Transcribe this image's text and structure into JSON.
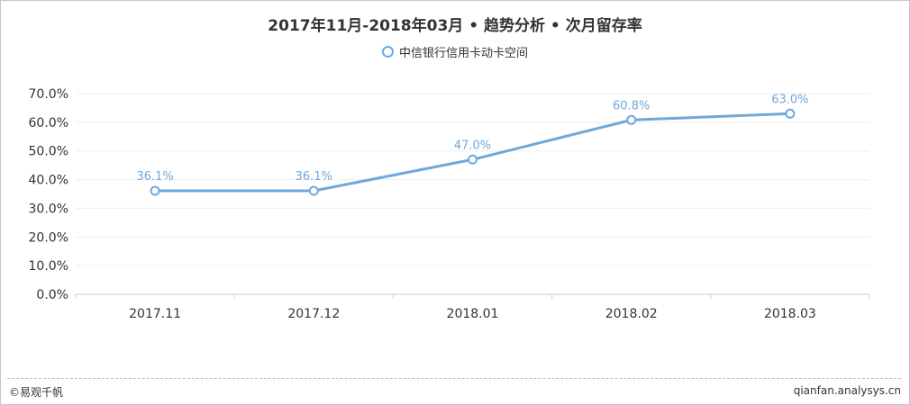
{
  "title": "2017年11月-2018年03月 • 趋势分析 • 次月留存率",
  "legend": {
    "label": "中信银行信用卡动卡空间"
  },
  "footer": {
    "left": "©易观千帆",
    "right": "qianfan.analysys.cn"
  },
  "colors": {
    "series": "#6fa8dc",
    "label": "#6fa8dc",
    "axis": "#333333",
    "grid": "#eeeeee"
  },
  "chart_data": {
    "type": "line",
    "title": "2017年11月-2018年03月 • 趋势分析 • 次月留存率",
    "x": [
      "2017.11",
      "2017.12",
      "2018.01",
      "2018.02",
      "2018.03"
    ],
    "series": [
      {
        "name": "中信银行信用卡动卡空间",
        "values": [
          36.1,
          36.1,
          47.0,
          60.8,
          63.0
        ],
        "labels": [
          "36.1%",
          "36.1%",
          "47.0%",
          "60.8%",
          "63.0%"
        ]
      }
    ],
    "y_ticks": [
      "0.0%",
      "10.0%",
      "20.0%",
      "30.0%",
      "40.0%",
      "50.0%",
      "60.0%",
      "70.0%"
    ],
    "ylim": [
      0,
      70
    ],
    "grid": true,
    "legend_position": "top-center"
  }
}
